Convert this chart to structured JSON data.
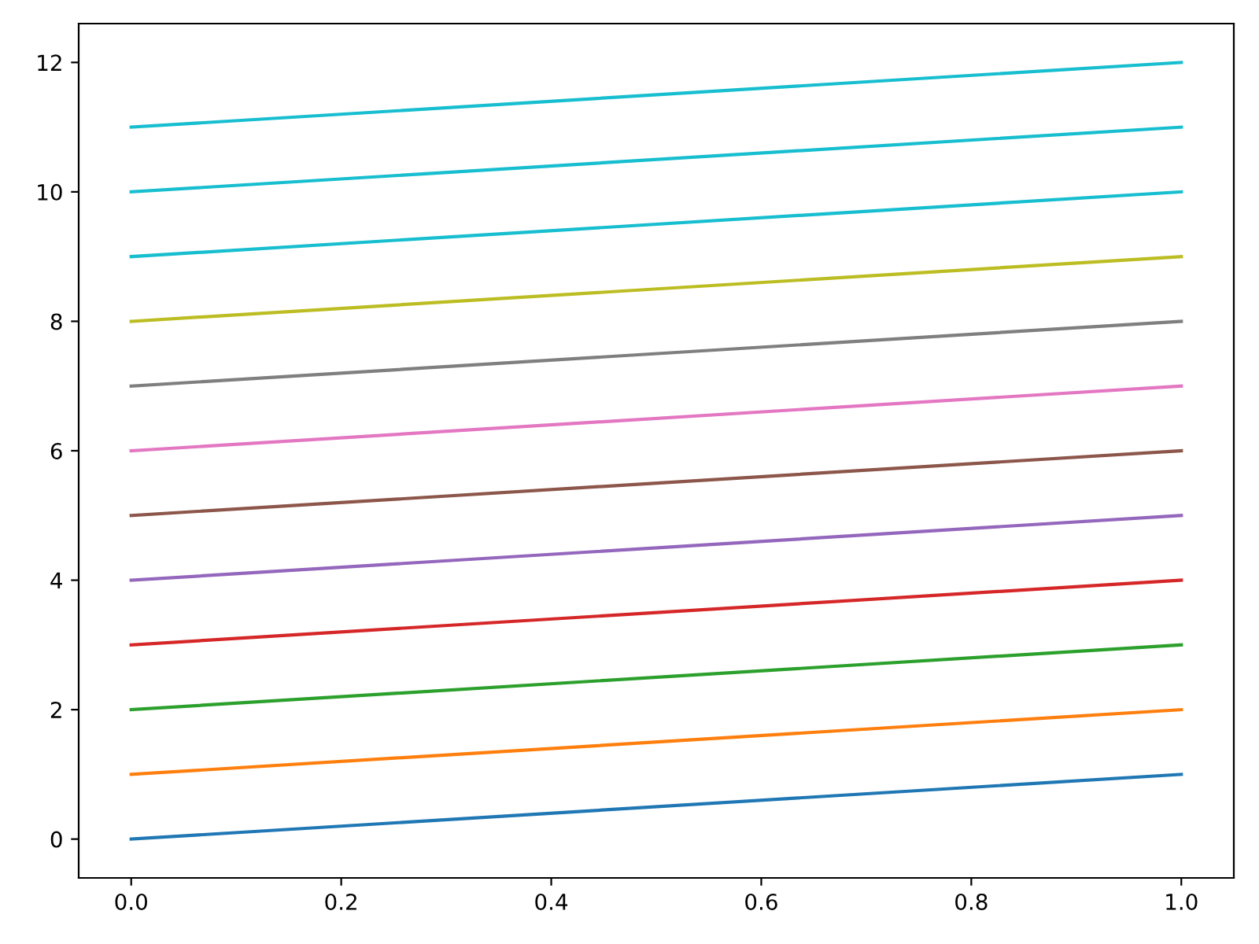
{
  "chart_data": {
    "type": "line",
    "x": [
      0,
      1
    ],
    "series": [
      {
        "color": "#1f77b4",
        "values": [
          0,
          1
        ]
      },
      {
        "color": "#ff7f0e",
        "values": [
          1,
          2
        ]
      },
      {
        "color": "#2ca02c",
        "values": [
          2,
          3
        ]
      },
      {
        "color": "#d62728",
        "values": [
          3,
          4
        ]
      },
      {
        "color": "#9467bd",
        "values": [
          4,
          5
        ]
      },
      {
        "color": "#8c564b",
        "values": [
          5,
          6
        ]
      },
      {
        "color": "#e377c2",
        "values": [
          6,
          7
        ]
      },
      {
        "color": "#7f7f7f",
        "values": [
          7,
          8
        ]
      },
      {
        "color": "#bcbd22",
        "values": [
          8,
          9
        ]
      },
      {
        "color": "#17becf",
        "values": [
          9,
          10
        ]
      },
      {
        "color": "#17becf",
        "values": [
          10,
          11
        ]
      },
      {
        "color": "#17becf",
        "values": [
          11,
          12
        ]
      }
    ],
    "xlim": [
      -0.05,
      1.05
    ],
    "xticks": [
      {
        "value": 0,
        "label": "0.0"
      },
      0.2,
      0.4,
      0.6,
      0.8,
      {
        "value": 1,
        "label": "1.0"
      }
    ],
    "ylim": [
      -0.6,
      12.6
    ],
    "yticks": [
      0,
      2,
      4,
      6,
      8,
      10,
      12
    ],
    "grid": false,
    "legend": false,
    "marker": "none",
    "line_style": "solid"
  }
}
